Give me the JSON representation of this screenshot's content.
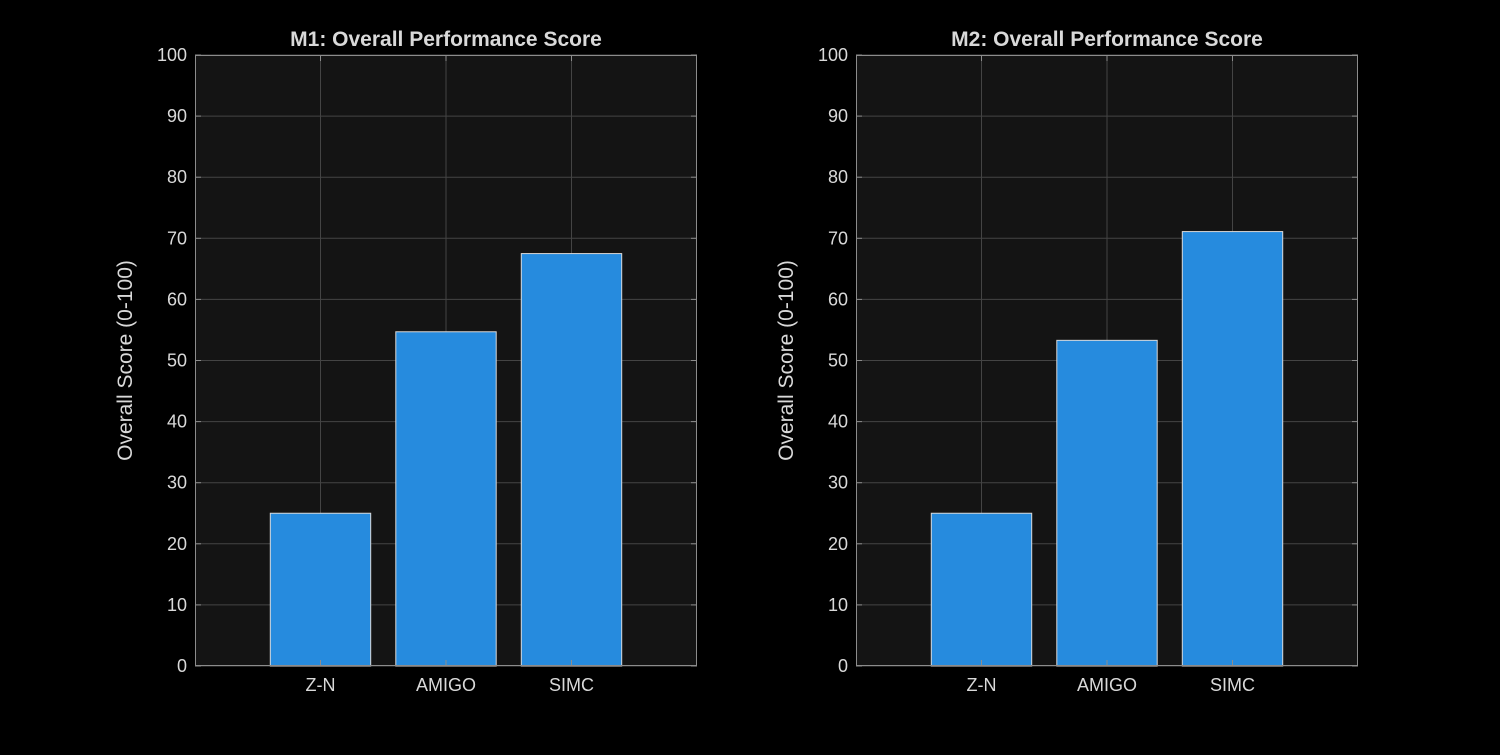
{
  "chart_data": [
    {
      "type": "bar",
      "title": "M1: Overall Performance Score",
      "xlabel": "",
      "ylabel": "Overall Score (0-100)",
      "categories": [
        "Z-N",
        "AMIGO",
        "SIMC"
      ],
      "values": [
        25.0,
        54.7,
        67.5
      ],
      "ylim": [
        0,
        100
      ],
      "yticks": [
        0,
        10,
        20,
        30,
        40,
        50,
        60,
        70,
        80,
        90,
        100
      ],
      "grid": true,
      "colors": {
        "bar": "#268bde",
        "bar_edge": "#d9d9d9",
        "axes_bg": "#141414",
        "axes_edge": "#8c8c8c",
        "grid": "#444444",
        "text": "#d9d9d9"
      }
    },
    {
      "type": "bar",
      "title": "M2: Overall Performance Score",
      "xlabel": "",
      "ylabel": "Overall Score (0-100)",
      "categories": [
        "Z-N",
        "AMIGO",
        "SIMC"
      ],
      "values": [
        25.0,
        53.3,
        71.1
      ],
      "ylim": [
        0,
        100
      ],
      "yticks": [
        0,
        10,
        20,
        30,
        40,
        50,
        60,
        70,
        80,
        90,
        100
      ],
      "grid": true,
      "colors": {
        "bar": "#268bde",
        "bar_edge": "#d9d9d9",
        "axes_bg": "#141414",
        "axes_edge": "#8c8c8c",
        "grid": "#444444",
        "text": "#d9d9d9"
      }
    }
  ]
}
